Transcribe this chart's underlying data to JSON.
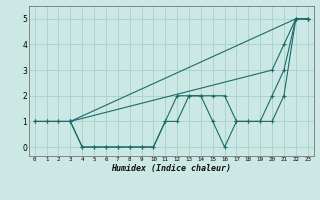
{
  "xlabel": "Humidex (Indice chaleur)",
  "bg_color": "#cce8e4",
  "grid_color": "#aad4ce",
  "line_color": "#1a6b6b",
  "xlim": [
    -0.5,
    23.5
  ],
  "ylim": [
    -0.35,
    5.5
  ],
  "xticks": [
    0,
    1,
    2,
    3,
    4,
    5,
    6,
    7,
    8,
    9,
    10,
    11,
    12,
    13,
    14,
    15,
    16,
    17,
    18,
    19,
    20,
    21,
    22,
    23
  ],
  "yticks": [
    0,
    1,
    2,
    3,
    4,
    5
  ],
  "series": [
    {
      "x": [
        0,
        1,
        2,
        3,
        4,
        5,
        6,
        7,
        8,
        9,
        10,
        11,
        12,
        13,
        14,
        15,
        16,
        17,
        18,
        19,
        20,
        21,
        22,
        23
      ],
      "y": [
        1,
        1,
        1,
        1,
        0,
        0,
        0,
        0,
        0,
        0,
        0,
        1,
        1,
        2,
        2,
        2,
        2,
        1,
        1,
        1,
        1,
        2,
        5,
        5
      ]
    },
    {
      "x": [
        0,
        1,
        2,
        3,
        4,
        5,
        6,
        7,
        8,
        9,
        10,
        11,
        12,
        13,
        14,
        15,
        16,
        17,
        18,
        19,
        20,
        21,
        22,
        23
      ],
      "y": [
        1,
        1,
        1,
        1,
        0,
        0,
        0,
        0,
        0,
        0,
        0,
        1,
        2,
        2,
        2,
        1,
        0,
        1,
        1,
        1,
        2,
        3,
        5,
        5
      ]
    },
    {
      "x": [
        3,
        22,
        23
      ],
      "y": [
        1,
        5,
        5
      ]
    },
    {
      "x": [
        3,
        20,
        21,
        22,
        23
      ],
      "y": [
        1,
        3,
        4,
        5,
        5
      ]
    }
  ]
}
